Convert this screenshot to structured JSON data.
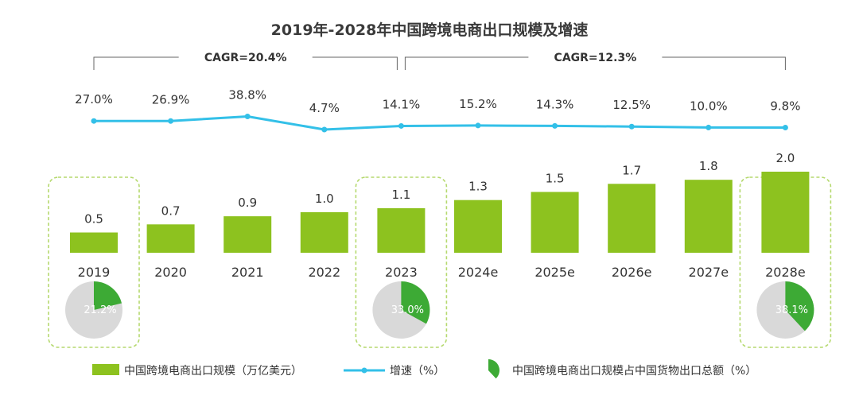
{
  "chart_data": {
    "type": "bar",
    "title": "2019年-2028年中国跨境电商出口规模及增速",
    "categories": [
      "2019",
      "2020",
      "2021",
      "2022",
      "2023",
      "2024e",
      "2025e",
      "2026e",
      "2027e",
      "2028e"
    ],
    "series": [
      {
        "name": "中国跨境电商出口规模（万亿美元）",
        "type": "bar",
        "values": [
          0.5,
          0.7,
          0.9,
          1.0,
          1.1,
          1.3,
          1.5,
          1.7,
          1.8,
          2.0
        ],
        "labels": [
          "0.5",
          "0.7",
          "0.9",
          "1.0",
          "1.1",
          "1.3",
          "1.5",
          "1.7",
          "1.8",
          "2.0"
        ],
        "color": "#8dc21f"
      },
      {
        "name": "增速（%）",
        "type": "line",
        "values": [
          27.0,
          26.9,
          38.8,
          4.7,
          14.1,
          15.2,
          14.3,
          12.5,
          10.0,
          9.8
        ],
        "labels": [
          "27.0%",
          "26.9%",
          "38.8%",
          "4.7%",
          "14.1%",
          "15.2%",
          "14.3%",
          "12.5%",
          "10.0%",
          "9.8%"
        ],
        "color": "#33c0e8"
      }
    ],
    "pies": [
      {
        "category": "2019",
        "value": 21.2,
        "label": "21.2%"
      },
      {
        "category": "2023",
        "value": 33.0,
        "label": "33.0%"
      },
      {
        "category": "2028e",
        "value": 38.1,
        "label": "38.1%"
      }
    ],
    "pie_series_name": "中国跨境电商出口规模占中国货物出口总额（%）",
    "cagr": [
      {
        "label": "CAGR=20.4%",
        "from": "2019",
        "to": "2023"
      },
      {
        "label": "CAGR=12.3%",
        "from": "2023",
        "to": "2028e"
      }
    ],
    "highlighted_categories": [
      "2019",
      "2023",
      "2028e"
    ],
    "legend_position": "bottom",
    "grid": false
  },
  "colors": {
    "bar": "#8dc21f",
    "line": "#33c0e8",
    "pie_share": "#3daa35",
    "pie_rest": "#d9d9d9",
    "highlight_border": "#b5d96e",
    "bracket": "#666666"
  }
}
